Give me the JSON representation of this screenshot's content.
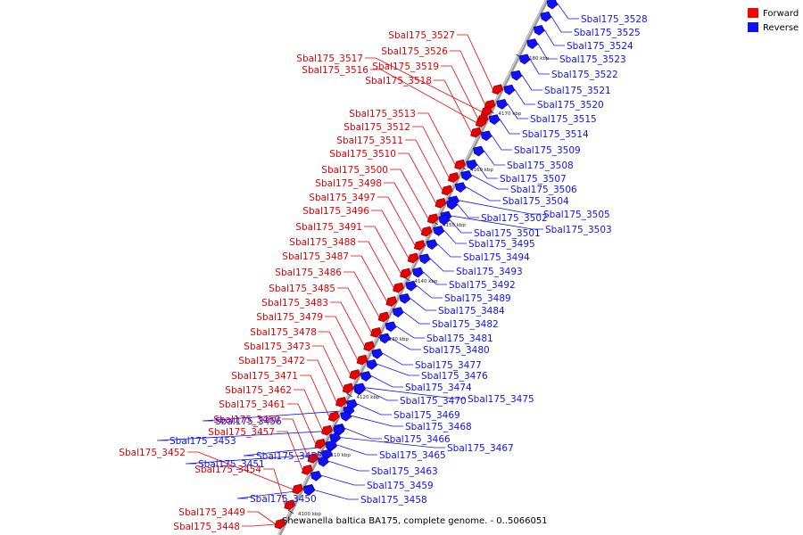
{
  "caption": "Shewanella baltica BA175, complete genome. - 0..5066051",
  "legend": [
    {
      "label": "Forward",
      "color": "#ff0000"
    },
    {
      "label": "Reverse",
      "color": "#1010ff"
    }
  ],
  "colors": {
    "forward": "#e60000",
    "reverse": "#1010ff",
    "axis": "#9a9a9a"
  },
  "ticks": [
    "4100 kbp",
    "4110 kbp",
    "4120 kbp",
    "4130 kbp",
    "4140 kbp",
    "4150 kbp",
    "4160 kbp",
    "4170 kbp",
    "4180 kbp"
  ],
  "genes": [
    {
      "label": "Sbal175_3528",
      "strand": "reverse"
    },
    {
      "label": "Sbal175_3527",
      "strand": "forward"
    },
    {
      "label": "Sbal175_3525",
      "strand": "reverse"
    },
    {
      "label": "Sbal175_3526",
      "strand": "forward"
    },
    {
      "label": "Sbal175_3524",
      "strand": "reverse"
    },
    {
      "label": "Sbal175_3517",
      "strand": "forward"
    },
    {
      "label": "Sbal175_3523",
      "strand": "reverse"
    },
    {
      "label": "Sbal175_3519",
      "strand": "forward"
    },
    {
      "label": "Sbal175_3516",
      "strand": "forward"
    },
    {
      "label": "Sbal175_3522",
      "strand": "reverse"
    },
    {
      "label": "Sbal175_3518",
      "strand": "forward"
    },
    {
      "label": "Sbal175_3521",
      "strand": "reverse"
    },
    {
      "label": "Sbal175_3520",
      "strand": "reverse"
    },
    {
      "label": "Sbal175_3513",
      "strand": "forward"
    },
    {
      "label": "Sbal175_3515",
      "strand": "reverse"
    },
    {
      "label": "Sbal175_3512",
      "strand": "forward"
    },
    {
      "label": "Sbal175_3514",
      "strand": "reverse"
    },
    {
      "label": "Sbal175_3511",
      "strand": "forward"
    },
    {
      "label": "Sbal175_3509",
      "strand": "reverse"
    },
    {
      "label": "Sbal175_3510",
      "strand": "forward"
    },
    {
      "label": "Sbal175_3508",
      "strand": "reverse"
    },
    {
      "label": "Sbal175_3500",
      "strand": "forward"
    },
    {
      "label": "Sbal175_3507",
      "strand": "reverse"
    },
    {
      "label": "Sbal175_3498",
      "strand": "forward"
    },
    {
      "label": "Sbal175_3506",
      "strand": "reverse"
    },
    {
      "label": "Sbal175_3497",
      "strand": "forward"
    },
    {
      "label": "Sbal175_3504",
      "strand": "reverse"
    },
    {
      "label": "Sbal175_3496",
      "strand": "forward"
    },
    {
      "label": "Sbal175_3505",
      "strand": "reverse"
    },
    {
      "label": "Sbal175_3502",
      "strand": "reverse"
    },
    {
      "label": "Sbal175_3491",
      "strand": "forward"
    },
    {
      "label": "Sbal175_3503",
      "strand": "reverse"
    },
    {
      "label": "Sbal175_3501",
      "strand": "reverse"
    },
    {
      "label": "Sbal175_3488",
      "strand": "forward"
    },
    {
      "label": "Sbal175_3495",
      "strand": "reverse"
    },
    {
      "label": "Sbal175_3487",
      "strand": "forward"
    },
    {
      "label": "Sbal175_3494",
      "strand": "reverse"
    },
    {
      "label": "Sbal175_3486",
      "strand": "forward"
    },
    {
      "label": "Sbal175_3493",
      "strand": "reverse"
    },
    {
      "label": "Sbal175_3485",
      "strand": "forward"
    },
    {
      "label": "Sbal175_3492",
      "strand": "reverse"
    },
    {
      "label": "Sbal175_3483",
      "strand": "forward"
    },
    {
      "label": "Sbal175_3489",
      "strand": "reverse"
    },
    {
      "label": "Sbal175_3479",
      "strand": "forward"
    },
    {
      "label": "Sbal175_3484",
      "strand": "reverse"
    },
    {
      "label": "Sbal175_3478",
      "strand": "forward"
    },
    {
      "label": "Sbal175_3482",
      "strand": "reverse"
    },
    {
      "label": "Sbal175_3473",
      "strand": "forward"
    },
    {
      "label": "Sbal175_3481",
      "strand": "reverse"
    },
    {
      "label": "Sbal175_3472",
      "strand": "forward"
    },
    {
      "label": "Sbal175_3480",
      "strand": "reverse"
    },
    {
      "label": "Sbal175_3471",
      "strand": "forward"
    },
    {
      "label": "Sbal175_3477",
      "strand": "reverse"
    },
    {
      "label": "Sbal175_3462",
      "strand": "forward"
    },
    {
      "label": "Sbal175_3476",
      "strand": "reverse"
    },
    {
      "label": "Sbal175_3474",
      "strand": "reverse"
    },
    {
      "label": "Sbal175_3461",
      "strand": "forward"
    },
    {
      "label": "Sbal175_3470",
      "strand": "reverse"
    },
    {
      "label": "Sbal175_3475",
      "strand": "reverse"
    },
    {
      "label": "Sbal175_3460",
      "strand": "forward"
    },
    {
      "label": "Sbal175_3456",
      "strand": "reverse"
    },
    {
      "label": "Sbal175_3469",
      "strand": "reverse"
    },
    {
      "label": "Sbal175_3457",
      "strand": "forward"
    },
    {
      "label": "Sbal175_3468",
      "strand": "reverse"
    },
    {
      "label": "Sbal175_3466",
      "strand": "reverse"
    },
    {
      "label": "Sbal175_3453",
      "strand": "reverse"
    },
    {
      "label": "Sbal175_3467",
      "strand": "reverse"
    },
    {
      "label": "Sbal175_3452",
      "strand": "forward"
    },
    {
      "label": "Sbal175_3455",
      "strand": "reverse"
    },
    {
      "label": "Sbal175_3465",
      "strand": "reverse"
    },
    {
      "label": "Sbal175_3451",
      "strand": "reverse"
    },
    {
      "label": "Sbal175_3454",
      "strand": "forward"
    },
    {
      "label": "Sbal175_3463",
      "strand": "reverse"
    },
    {
      "label": "Sbal175_3459",
      "strand": "reverse"
    },
    {
      "label": "Sbal175_3450",
      "strand": "reverse"
    },
    {
      "label": "Sbal175_3458",
      "strand": "reverse"
    },
    {
      "label": "Sbal175_3449",
      "strand": "forward"
    },
    {
      "label": "Sbal175_3448",
      "strand": "forward"
    }
  ]
}
